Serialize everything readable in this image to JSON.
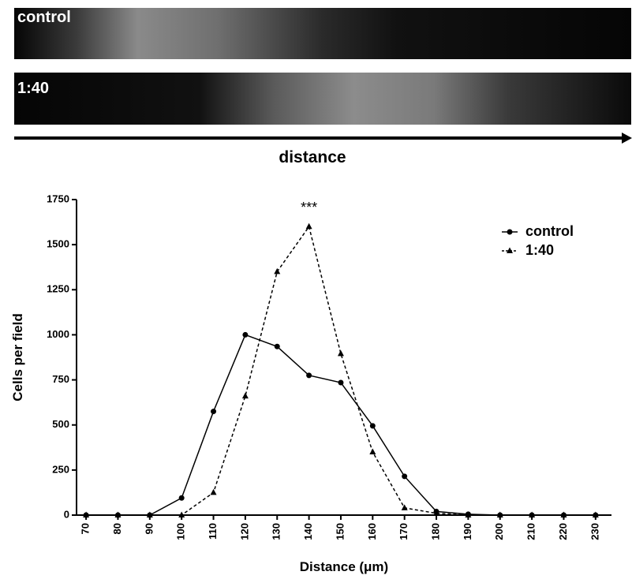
{
  "panels": [
    "control",
    "1:40"
  ],
  "arrow_label": "distance",
  "chart_data": {
    "type": "line",
    "x": [
      70,
      80,
      90,
      100,
      110,
      120,
      130,
      140,
      150,
      160,
      170,
      180,
      190,
      200,
      210,
      220,
      230
    ],
    "series": [
      {
        "name": "control",
        "color": "#000000",
        "marker": "circle",
        "dashed": false,
        "values": [
          0,
          0,
          0,
          95,
          575,
          1000,
          935,
          775,
          735,
          495,
          215,
          20,
          5,
          0,
          0,
          0,
          0
        ]
      },
      {
        "name": "1:40",
        "color": "#000000",
        "marker": "triangle",
        "dashed": true,
        "values": [
          0,
          0,
          0,
          0,
          125,
          660,
          1350,
          1600,
          895,
          350,
          40,
          10,
          0,
          0,
          0,
          0,
          0
        ]
      }
    ],
    "xlim": [
      67,
      235
    ],
    "ylim": [
      0,
      1750
    ],
    "xticks": [
      70,
      80,
      90,
      100,
      110,
      120,
      130,
      140,
      150,
      160,
      170,
      180,
      190,
      200,
      210,
      220,
      230
    ],
    "yticks": [
      0,
      250,
      500,
      750,
      1000,
      1250,
      1500,
      1750
    ],
    "x_label": "Distance (μm)",
    "y_label": "Cells per field",
    "annotations": [
      {
        "text": "***",
        "x": 140,
        "y": 1700
      }
    ],
    "legend": "upper right"
  }
}
